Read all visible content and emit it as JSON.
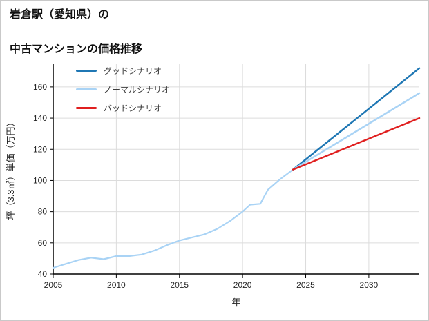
{
  "page": {
    "title_line1": "岩倉駅（愛知県）の",
    "title_line2": "中古マンションの価格推移"
  },
  "chart_data": {
    "type": "line",
    "title": "岩倉駅（愛知県）の中古マンションの価格推移",
    "xlabel": "年",
    "ylabel": "坪（3.3㎡）単価（万円）",
    "xlim": [
      2005,
      2034
    ],
    "ylim": [
      40,
      175
    ],
    "xticks": [
      2005,
      2010,
      2015,
      2020,
      2025,
      2030
    ],
    "yticks": [
      40,
      60,
      80,
      100,
      120,
      140,
      160
    ],
    "grid": true,
    "legend_position": "top-left",
    "legend": [
      {
        "label": "グッドシナリオ",
        "color": "#1f77b4"
      },
      {
        "label": "ノーマルシナリオ",
        "color": "#a9d3f5"
      },
      {
        "label": "バッドシナリオ",
        "color": "#e01f1f"
      }
    ],
    "series": [
      {
        "name": "history",
        "color": "#a9d3f5",
        "width": 2.2,
        "x": [
          2005,
          2006,
          2007,
          2008,
          2009,
          2010,
          2011,
          2012,
          2013,
          2014,
          2015,
          2016,
          2017,
          2018,
          2019,
          2020,
          2020.6,
          2021.4,
          2022,
          2023,
          2024
        ],
        "y": [
          44,
          46.5,
          49,
          50.5,
          49.5,
          51.5,
          51.5,
          52.5,
          55,
          58.5,
          61.5,
          63.5,
          65.5,
          69,
          74,
          80,
          84.5,
          85,
          94,
          101,
          107
        ]
      },
      {
        "name": "グッドシナリオ",
        "color": "#1f77b4",
        "width": 2.5,
        "x": [
          2024,
          2034
        ],
        "y": [
          107,
          172
        ]
      },
      {
        "name": "ノーマルシナリオ",
        "color": "#a9d3f5",
        "width": 2.5,
        "x": [
          2024,
          2034
        ],
        "y": [
          107,
          156
        ]
      },
      {
        "name": "バッドシナリオ",
        "color": "#e01f1f",
        "width": 2.5,
        "x": [
          2024,
          2034
        ],
        "y": [
          107,
          140
        ]
      }
    ]
  }
}
